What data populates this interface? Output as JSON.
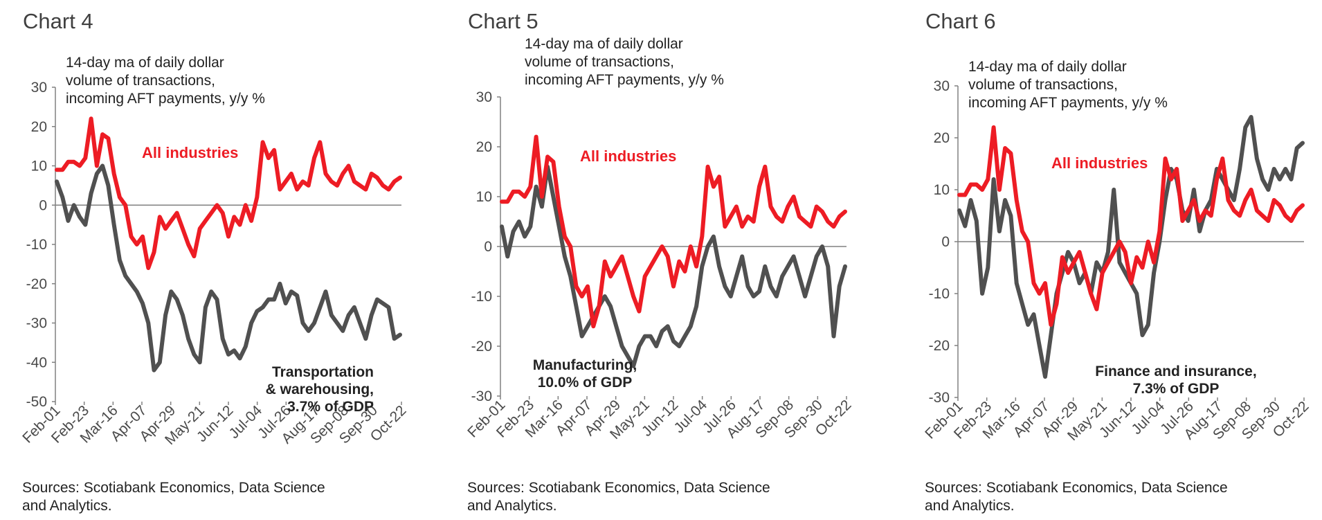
{
  "chart_data": [
    {
      "type": "line",
      "title": "Chart 4",
      "subtitle": [
        "14-day  ma of daily dollar",
        "volume of transactions,",
        "incoming AFT payments, y/y %"
      ],
      "ylim": [
        -50,
        30
      ],
      "yticks": [
        30,
        20,
        10,
        0,
        -10,
        -20,
        -30,
        -40,
        -50
      ],
      "x_tick_labels": [
        "Feb-01",
        "Feb-23",
        "Mar-16",
        "Apr-07",
        "Apr-29",
        "May-21",
        "Jun-12",
        "Jul-04",
        "Jul-26",
        "Aug-17",
        "Sep-08",
        "Sep-30",
        "Oct-22"
      ],
      "series": [
        {
          "name": "All industries",
          "label": "All industries",
          "color": "#ed1c24",
          "values": [
            9,
            9,
            11,
            11,
            10,
            12,
            22,
            10,
            18,
            17,
            8,
            2,
            0,
            -8,
            -10,
            -8,
            -16,
            -12,
            -3,
            -6,
            -4,
            -2,
            -6,
            -10,
            -13,
            -6,
            -4,
            -2,
            0,
            -2,
            -8,
            -3,
            -5,
            0,
            -4,
            2,
            16,
            12,
            14,
            4,
            6,
            8,
            4,
            6,
            5,
            12,
            16,
            8,
            6,
            5,
            8,
            10,
            6,
            5,
            4,
            8,
            7,
            5,
            4,
            6,
            7
          ]
        },
        {
          "name": "Transportation & warehousing, 3.7% of GDP",
          "label": [
            "Transportation",
            "& warehousing,",
            "3.7% of GDP"
          ],
          "color": "#505050",
          "values": [
            6,
            2,
            -4,
            0,
            -3,
            -5,
            3,
            8,
            10,
            5,
            -5,
            -14,
            -18,
            -20,
            -22,
            -25,
            -30,
            -42,
            -40,
            -28,
            -22,
            -24,
            -28,
            -34,
            -38,
            -40,
            -26,
            -22,
            -24,
            -34,
            -38,
            -37,
            -39,
            -36,
            -30,
            -27,
            -26,
            -24,
            -24,
            -20,
            -25,
            -22,
            -23,
            -30,
            -32,
            -30,
            -26,
            -22,
            -28,
            -30,
            -32,
            -28,
            -26,
            -30,
            -34,
            -28,
            -24,
            -25,
            -26,
            -34,
            -33
          ]
        }
      ]
    },
    {
      "type": "line",
      "title": "Chart 5",
      "subtitle": [
        "14-day  ma of daily dollar",
        "volume of transactions,",
        "incoming AFT payments, y/y %"
      ],
      "ylim": [
        -30,
        30
      ],
      "yticks": [
        30,
        20,
        10,
        0,
        -10,
        -20,
        -30
      ],
      "x_tick_labels": [
        "Feb-01",
        "Feb-23",
        "Mar-16",
        "Apr-07",
        "Apr-29",
        "May-21",
        "Jun-12",
        "Jul-04",
        "Jul-26",
        "Aug-17",
        "Sep-08",
        "Sep-30",
        "Oct-22"
      ],
      "series": [
        {
          "name": "All industries",
          "label": "All industries",
          "color": "#ed1c24",
          "values": [
            9,
            9,
            11,
            11,
            10,
            12,
            22,
            10,
            18,
            17,
            8,
            2,
            0,
            -8,
            -10,
            -8,
            -16,
            -12,
            -3,
            -6,
            -4,
            -2,
            -6,
            -10,
            -13,
            -6,
            -4,
            -2,
            0,
            -2,
            -8,
            -3,
            -5,
            0,
            -4,
            2,
            16,
            12,
            14,
            4,
            6,
            8,
            4,
            6,
            5,
            12,
            16,
            8,
            6,
            5,
            8,
            10,
            6,
            5,
            4,
            8,
            7,
            5,
            4,
            6,
            7
          ]
        },
        {
          "name": "Manufacturing, 10.0% of GDP",
          "label": [
            "Manufacturing,",
            "10.0% of GDP"
          ],
          "color": "#505050",
          "values": [
            4,
            -2,
            3,
            5,
            2,
            4,
            12,
            8,
            16,
            10,
            4,
            -2,
            -6,
            -12,
            -18,
            -16,
            -14,
            -12,
            -10,
            -12,
            -16,
            -20,
            -22,
            -24,
            -20,
            -18,
            -18,
            -20,
            -17,
            -16,
            -19,
            -20,
            -18,
            -16,
            -12,
            -4,
            0,
            2,
            -4,
            -8,
            -10,
            -6,
            -2,
            -8,
            -10,
            -9,
            -4,
            -8,
            -10,
            -6,
            -4,
            -2,
            -6,
            -10,
            -6,
            -2,
            0,
            -4,
            -18,
            -8,
            -4
          ]
        }
      ]
    },
    {
      "type": "line",
      "title": "Chart 6",
      "subtitle": [
        "14-day  ma of daily dollar",
        "volume of transactions,",
        "incoming AFT payments, y/y %"
      ],
      "ylim": [
        -30,
        30
      ],
      "yticks": [
        30,
        20,
        10,
        0,
        -10,
        -20,
        -30
      ],
      "x_tick_labels": [
        "Feb-01",
        "Feb-23",
        "Mar-16",
        "Apr-07",
        "Apr-29",
        "May-21",
        "Jun-12",
        "Jul-04",
        "Jul-26",
        "Aug-17",
        "Sep-08",
        "Sep-30",
        "Oct-22"
      ],
      "series": [
        {
          "name": "All industries",
          "label": "All industries",
          "color": "#ed1c24",
          "values": [
            9,
            9,
            11,
            11,
            10,
            12,
            22,
            10,
            18,
            17,
            8,
            2,
            0,
            -8,
            -10,
            -8,
            -16,
            -12,
            -3,
            -6,
            -4,
            -2,
            -6,
            -10,
            -13,
            -6,
            -4,
            -2,
            0,
            -2,
            -8,
            -3,
            -5,
            0,
            -4,
            2,
            16,
            12,
            14,
            4,
            6,
            8,
            4,
            6,
            5,
            12,
            16,
            8,
            6,
            5,
            8,
            10,
            6,
            5,
            4,
            8,
            7,
            5,
            4,
            6,
            7
          ]
        },
        {
          "name": "Finance and insurance, 7.3% of GDP",
          "label": [
            "Finance and insurance,",
            "7.3% of GDP"
          ],
          "color": "#505050",
          "values": [
            6,
            3,
            8,
            4,
            -10,
            -5,
            12,
            2,
            8,
            5,
            -8,
            -12,
            -16,
            -14,
            -20,
            -26,
            -18,
            -10,
            -6,
            -2,
            -4,
            -8,
            -6,
            -10,
            -4,
            -6,
            -2,
            10,
            -4,
            -6,
            -8,
            -10,
            -18,
            -16,
            -6,
            0,
            8,
            14,
            12,
            6,
            4,
            10,
            2,
            6,
            8,
            14,
            12,
            10,
            8,
            14,
            22,
            24,
            16,
            12,
            10,
            14,
            12,
            14,
            12,
            18,
            19
          ]
        }
      ]
    }
  ],
  "source_lines": [
    "Sources: Scotiabank Economics, Data Science",
    "and Analytics."
  ]
}
